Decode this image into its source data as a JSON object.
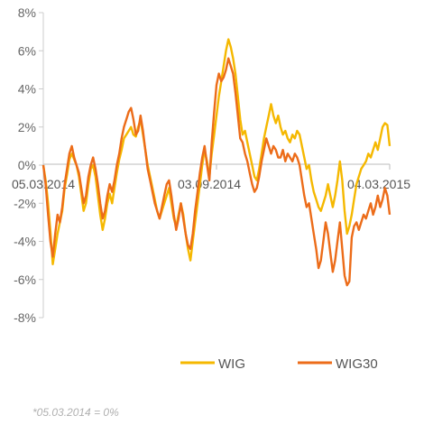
{
  "chart_data": {
    "type": "line",
    "title": "",
    "xlabel": "",
    "ylabel": "",
    "ylim": [
      -8,
      8
    ],
    "y_ticks": [
      8,
      6,
      4,
      2,
      0,
      -2,
      -4,
      -6,
      -8
    ],
    "y_tick_suffix": "%",
    "x_tick_labels": [
      "05.03.2014",
      "03.09.2014",
      "04.03.2015"
    ],
    "grid": false,
    "legend_position": "bottom",
    "series": [
      {
        "name": "WIG",
        "color": "#f5b800",
        "values": [
          0.0,
          -0.8,
          -2.0,
          -3.5,
          -5.2,
          -4.4,
          -3.6,
          -3.0,
          -2.4,
          -1.2,
          -0.5,
          0.3,
          0.6,
          0.3,
          0.0,
          -0.6,
          -1.5,
          -2.4,
          -2.0,
          -1.0,
          -0.2,
          0.0,
          -0.6,
          -1.6,
          -2.6,
          -3.4,
          -2.8,
          -2.0,
          -1.5,
          -2.0,
          -1.2,
          -0.4,
          0.3,
          0.8,
          1.4,
          1.6,
          1.8,
          2.0,
          1.6,
          1.5,
          2.0,
          2.4,
          1.6,
          0.8,
          0.0,
          -0.6,
          -1.2,
          -1.8,
          -2.4,
          -2.8,
          -2.4,
          -2.0,
          -1.6,
          -1.2,
          -2.0,
          -2.8,
          -3.2,
          -2.6,
          -2.0,
          -2.6,
          -3.6,
          -4.4,
          -5.0,
          -4.0,
          -3.0,
          -2.0,
          -1.0,
          0.0,
          0.8,
          0.2,
          -0.6,
          0.6,
          1.6,
          2.6,
          3.6,
          4.4,
          5.2,
          6.0,
          6.6,
          6.2,
          5.6,
          4.8,
          3.6,
          2.4,
          1.6,
          1.8,
          1.2,
          0.6,
          0.0,
          -0.6,
          -0.8,
          -0.2,
          0.6,
          1.4,
          2.0,
          2.6,
          3.2,
          2.6,
          2.2,
          2.6,
          2.0,
          1.6,
          1.8,
          1.4,
          1.2,
          1.6,
          1.4,
          1.8,
          1.6,
          1.0,
          0.4,
          -0.2,
          0.0,
          -0.8,
          -1.4,
          -1.8,
          -2.2,
          -2.4,
          -2.0,
          -1.6,
          -1.0,
          -1.6,
          -2.2,
          -1.6,
          -0.8,
          0.2,
          -0.8,
          -2.4,
          -3.6,
          -3.2,
          -2.6,
          -1.8,
          -1.0,
          -0.6,
          -0.2,
          0.0,
          0.2,
          0.6,
          0.4,
          0.8,
          1.2,
          0.8,
          1.4,
          2.0,
          2.2,
          2.1,
          1.0
        ]
      },
      {
        "name": "WIG30",
        "color": "#ec6c19",
        "values": [
          0.0,
          -1.0,
          -2.6,
          -4.0,
          -4.8,
          -3.6,
          -2.6,
          -3.0,
          -2.2,
          -1.0,
          -0.2,
          0.6,
          1.0,
          0.4,
          0.0,
          -0.4,
          -1.2,
          -2.0,
          -1.6,
          -0.6,
          0.0,
          0.4,
          -0.2,
          -1.0,
          -2.0,
          -2.8,
          -2.4,
          -1.6,
          -1.0,
          -1.4,
          -0.8,
          0.0,
          0.6,
          1.4,
          2.0,
          2.4,
          2.8,
          3.0,
          2.4,
          1.6,
          1.8,
          2.6,
          1.8,
          0.8,
          -0.2,
          -0.8,
          -1.4,
          -2.0,
          -2.4,
          -2.8,
          -2.2,
          -1.6,
          -1.0,
          -0.8,
          -1.6,
          -2.6,
          -3.4,
          -2.8,
          -2.0,
          -2.8,
          -3.6,
          -4.2,
          -4.4,
          -3.6,
          -2.4,
          -1.4,
          -0.4,
          0.4,
          1.0,
          0.0,
          -0.8,
          1.2,
          2.8,
          4.2,
          4.8,
          4.4,
          4.6,
          5.0,
          5.6,
          5.2,
          4.8,
          3.8,
          2.6,
          1.4,
          1.2,
          0.6,
          0.2,
          -0.4,
          -1.0,
          -1.4,
          -1.2,
          -0.6,
          0.2,
          0.8,
          1.4,
          1.0,
          0.6,
          1.0,
          0.8,
          0.4,
          0.4,
          0.8,
          0.2,
          0.6,
          0.4,
          0.2,
          0.6,
          0.4,
          0.0,
          -0.8,
          -1.6,
          -2.2,
          -2.0,
          -2.8,
          -3.6,
          -4.4,
          -5.4,
          -5.0,
          -4.0,
          -3.0,
          -3.6,
          -4.6,
          -5.6,
          -5.0,
          -4.0,
          -3.0,
          -4.4,
          -5.8,
          -6.3,
          -6.1,
          -3.8,
          -3.2,
          -3.0,
          -3.4,
          -3.0,
          -2.6,
          -2.8,
          -2.4,
          -2.0,
          -2.6,
          -2.2,
          -1.6,
          -2.2,
          -1.8,
          -1.2,
          -1.6,
          -2.6
        ]
      }
    ]
  },
  "footnote": "*05.03.2014 = 0%"
}
